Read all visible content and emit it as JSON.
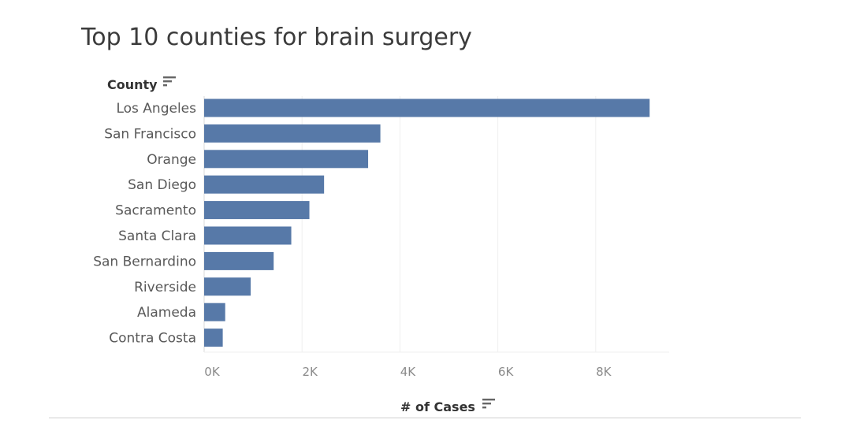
{
  "title": "Top 10 counties for brain surgery",
  "sort_icon": "sort-descending-icon",
  "chart_data": {
    "type": "bar",
    "orientation": "horizontal",
    "title": "Top 10 counties for brain surgery",
    "ylabel": "County",
    "xlabel": "# of Cases",
    "categories": [
      "Los Angeles",
      "San Francisco",
      "Orange",
      "San Diego",
      "Sacramento",
      "Santa Clara",
      "San Bernardino",
      "Riverside",
      "Alameda",
      "Contra Costa"
    ],
    "values": [
      9100,
      3600,
      3350,
      2450,
      2150,
      1780,
      1420,
      950,
      430,
      380
    ],
    "xlim": [
      0,
      9500
    ],
    "xticks": [
      0,
      2000,
      4000,
      6000,
      8000
    ],
    "xtick_labels": [
      "0K",
      "2K",
      "4K",
      "6K",
      "8K"
    ],
    "grid": "vertical",
    "bar_color": "#5779a8"
  }
}
